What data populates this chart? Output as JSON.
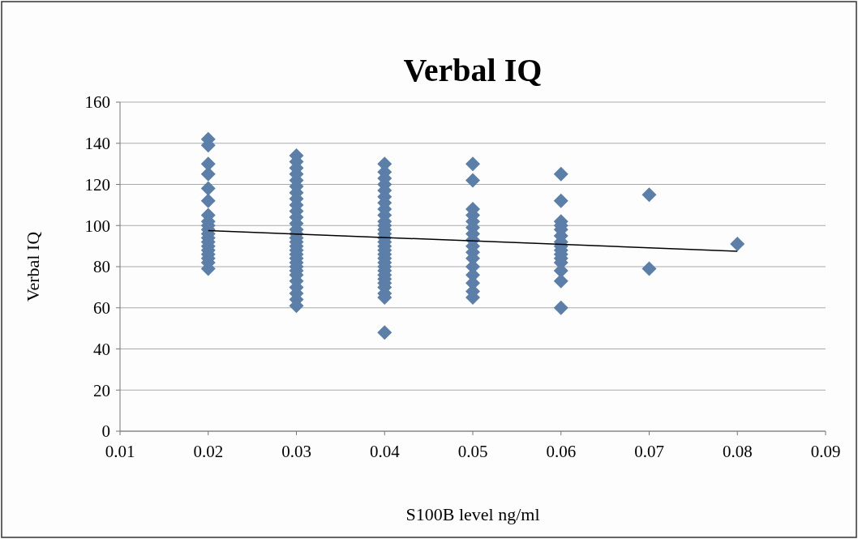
{
  "chart_data": {
    "type": "scatter",
    "title": "Verbal IQ",
    "xlabel": "S100B level ng/ml",
    "ylabel": "Verbal IQ",
    "xlim": [
      0.01,
      0.09
    ],
    "xticks": [
      0.01,
      0.02,
      0.03,
      0.04,
      0.05,
      0.06,
      0.07,
      0.08,
      0.09
    ],
    "ylim": [
      0,
      160
    ],
    "yticks": [
      0,
      20,
      40,
      60,
      80,
      100,
      120,
      140,
      160
    ],
    "grid": "y",
    "marker": "diamond",
    "series": [
      {
        "color": "#5b7fa8",
        "x": [
          0.02,
          0.02,
          0.02,
          0.02,
          0.02,
          0.02,
          0.02,
          0.02,
          0.02,
          0.02,
          0.02,
          0.02,
          0.02,
          0.02,
          0.02,
          0.02,
          0.02,
          0.02,
          0.02,
          0.03,
          0.03,
          0.03,
          0.03,
          0.03,
          0.03,
          0.03,
          0.03,
          0.03,
          0.03,
          0.03,
          0.03,
          0.03,
          0.03,
          0.03,
          0.03,
          0.03,
          0.03,
          0.03,
          0.03,
          0.03,
          0.03,
          0.03,
          0.03,
          0.03,
          0.03,
          0.03,
          0.03,
          0.03,
          0.04,
          0.04,
          0.04,
          0.04,
          0.04,
          0.04,
          0.04,
          0.04,
          0.04,
          0.04,
          0.04,
          0.04,
          0.04,
          0.04,
          0.04,
          0.04,
          0.04,
          0.04,
          0.04,
          0.04,
          0.04,
          0.04,
          0.04,
          0.04,
          0.04,
          0.04,
          0.04,
          0.04,
          0.04,
          0.05,
          0.05,
          0.05,
          0.05,
          0.05,
          0.05,
          0.05,
          0.05,
          0.05,
          0.05,
          0.05,
          0.05,
          0.05,
          0.05,
          0.05,
          0.05,
          0.06,
          0.06,
          0.06,
          0.06,
          0.06,
          0.06,
          0.06,
          0.06,
          0.06,
          0.06,
          0.06,
          0.06,
          0.06,
          0.06,
          0.06,
          0.07,
          0.07,
          0.08
        ],
        "values": [
          142,
          139,
          130,
          125,
          118,
          112,
          105,
          102,
          100,
          98,
          96,
          94,
          92,
          90,
          88,
          86,
          84,
          82,
          79,
          134,
          131,
          128,
          125,
          122,
          119,
          116,
          113,
          110,
          107,
          104,
          101,
          98,
          96,
          94,
          92,
          90,
          88,
          86,
          84,
          82,
          80,
          78,
          76,
          73,
          70,
          67,
          64,
          61,
          130,
          126,
          123,
          120,
          117,
          114,
          111,
          108,
          105,
          102,
          100,
          98,
          96,
          94,
          92,
          90,
          88,
          86,
          84,
          82,
          80,
          78,
          76,
          74,
          72,
          70,
          67,
          65,
          48,
          130,
          122,
          108,
          105,
          102,
          99,
          96,
          93,
          90,
          87,
          84,
          80,
          76,
          72,
          68,
          65,
          125,
          112,
          102,
          100,
          98,
          95,
          92,
          90,
          88,
          86,
          84,
          82,
          78,
          73,
          60,
          115,
          79,
          91
        ]
      },
      {
        "type": "line",
        "marker": "none",
        "color": "#000000",
        "x": [
          0.02,
          0.08
        ],
        "values": [
          97.5,
          87.5
        ]
      }
    ]
  }
}
